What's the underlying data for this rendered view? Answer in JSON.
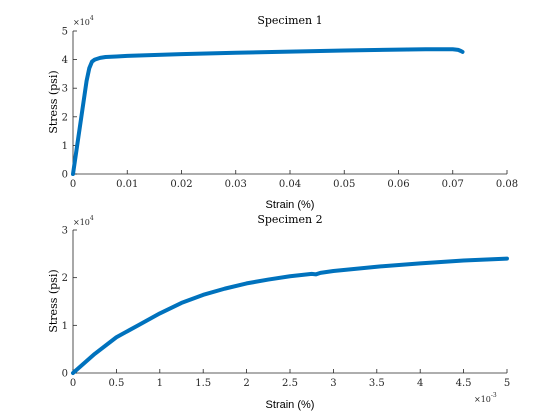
{
  "figure": {
    "background": "#ffffff",
    "line_color": "#0072BD",
    "axis_color": "#262626"
  },
  "chart_data": [
    {
      "type": "line",
      "title": "Specimen 1",
      "xlabel": "Strain (%)",
      "ylabel": "Stress (psi)",
      "xlim": [
        0,
        0.08
      ],
      "ylim": [
        0,
        50000
      ],
      "x_ticks": [
        0,
        0.01,
        0.02,
        0.03,
        0.04,
        0.05,
        0.06,
        0.07,
        0.08
      ],
      "x_tick_labels": [
        "0",
        "0.01",
        "0.02",
        "0.03",
        "0.04",
        "0.05",
        "0.06",
        "0.07",
        "0.08"
      ],
      "y_ticks": [
        0,
        10000,
        20000,
        30000,
        40000,
        50000
      ],
      "y_tick_labels": [
        "0",
        "1",
        "2",
        "3",
        "4",
        "5"
      ],
      "y_exponent": {
        "base": "×10",
        "power": "4"
      },
      "grid": false,
      "series": [
        {
          "x": [
            0,
            0.0005,
            0.001,
            0.0015,
            0.002,
            0.0025,
            0.003,
            0.0035,
            0.004,
            0.005,
            0.006,
            0.008,
            0.01,
            0.015,
            0.02,
            0.03,
            0.04,
            0.05,
            0.06,
            0.065,
            0.07,
            0.071,
            0.0715,
            0.0718
          ],
          "y": [
            0,
            6500,
            13000,
            19500,
            26000,
            32500,
            37000,
            39300,
            40000,
            40600,
            40900,
            41100,
            41300,
            41600,
            41900,
            42400,
            42800,
            43200,
            43500,
            43600,
            43600,
            43400,
            43000,
            42700
          ]
        }
      ]
    },
    {
      "type": "line",
      "title": "Specimen 2",
      "xlabel": "Strain (%)",
      "ylabel": "Stress (psi)",
      "xlim": [
        0,
        0.005
      ],
      "ylim": [
        0,
        30000
      ],
      "x_ticks": [
        0,
        0.0005,
        0.001,
        0.0015,
        0.002,
        0.0025,
        0.003,
        0.0035,
        0.004,
        0.0045,
        0.005
      ],
      "x_tick_labels": [
        "0",
        "0.5",
        "1",
        "1.5",
        "2",
        "2.5",
        "3",
        "3.5",
        "4",
        "4.5",
        "5"
      ],
      "x_exponent": {
        "base": "×10",
        "power": "-3"
      },
      "y_ticks": [
        0,
        10000,
        20000,
        30000
      ],
      "y_tick_labels": [
        "0",
        "1",
        "2",
        "3"
      ],
      "y_exponent": {
        "base": "×10",
        "power": "4"
      },
      "grid": false,
      "series": [
        {
          "x": [
            0,
            0.00025,
            0.0005,
            0.00075,
            0.001,
            0.00125,
            0.0015,
            0.00175,
            0.002,
            0.00225,
            0.0025,
            0.00275,
            0.0028,
            0.00285,
            0.003,
            0.0035,
            0.004,
            0.0045,
            0.005
          ],
          "y": [
            0,
            4000,
            7500,
            10000,
            12500,
            14700,
            16400,
            17700,
            18800,
            19600,
            20300,
            20800,
            20700,
            21000,
            21400,
            22300,
            23000,
            23600,
            24000
          ]
        }
      ]
    }
  ]
}
